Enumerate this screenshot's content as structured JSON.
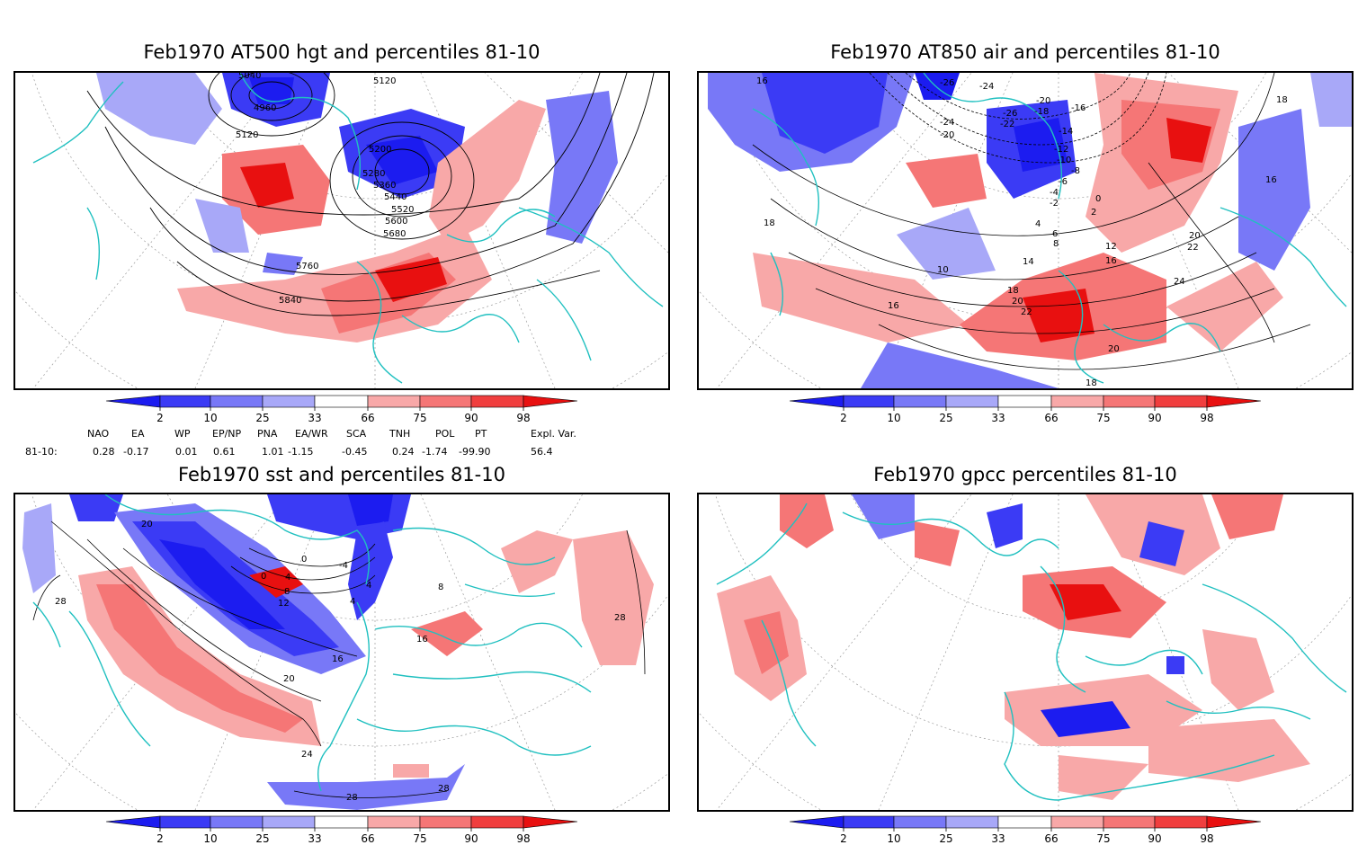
{
  "panels": [
    {
      "title": "Feb1970 AT500 hgt and percentiles 81-10",
      "contour_labels": [
        "5040",
        "4960",
        "5120",
        "5120",
        "5200",
        "5280",
        "5360",
        "5440",
        "5520",
        "5600",
        "5680",
        "5760",
        "5840"
      ]
    },
    {
      "title": "Feb1970 AT850 air and percentiles 81-10",
      "contour_labels": [
        "16",
        "-26",
        "-24",
        "-20",
        "-18",
        "-16",
        "-26",
        "-22",
        "-24",
        "-20",
        "-14",
        "-12",
        "-10",
        "-8",
        "-6",
        "-4",
        "-2",
        "0",
        "2",
        "4",
        "6",
        "8",
        "10",
        "12",
        "14",
        "16",
        "18",
        "20",
        "22",
        "24",
        "16",
        "18",
        "18",
        "16",
        "20",
        "22",
        "20",
        "18"
      ]
    },
    {
      "title": "Feb1970 sst and percentiles 81-10",
      "contour_labels": [
        "20",
        "28",
        "0",
        "4",
        "0",
        "-4",
        "4",
        "8",
        "12",
        "16",
        "20",
        "24",
        "28",
        "28",
        "16",
        "8",
        "28",
        "4"
      ]
    },
    {
      "title": "Feb1970 gpcc percentiles 81-10",
      "contour_labels": []
    }
  ],
  "colorbar": {
    "ticks": [
      "2",
      "10",
      "25",
      "33",
      "66",
      "75",
      "90",
      "98"
    ],
    "colors": {
      "below2": "#1c1cf0",
      "b2_10": "#3b3bf5",
      "b10_25": "#7878f7",
      "b25_33": "#a8a8f8",
      "mid": "#ffffff",
      "b66_75": "#f8a8a8",
      "b75_90": "#f57676",
      "b90_98": "#f03e3e",
      "above98": "#e81010"
    }
  },
  "indices": {
    "row_label": "81-10:",
    "headers": [
      "NAO",
      "EA",
      "WP",
      "EP/NP",
      "PNA",
      "EA/WR",
      "SCA",
      "TNH",
      "POL",
      "PT",
      "Expl. Var."
    ],
    "values": [
      "0.28",
      "-0.17",
      "0.01",
      "0.61",
      "1.01",
      "-1.15",
      "-0.45",
      "0.24",
      "-1.74",
      "-99.90",
      "56.4"
    ]
  },
  "colors": {
    "coastline": "#20c0c0",
    "contour": "#000000",
    "grid": "#9a9a9a"
  }
}
